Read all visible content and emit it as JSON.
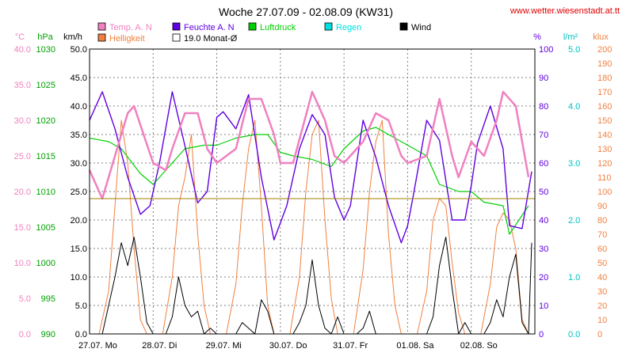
{
  "chart_data": {
    "type": "line",
    "title": "Woche 27.07.09 - 02.08.09 (KW31)",
    "source": "www.wetter.wiesenstadt.at.tt",
    "legend": [
      {
        "key": "temp",
        "label": "Temp. A. N",
        "color": "#f080c0"
      },
      {
        "key": "feuchte",
        "label": "Feuchte A. N",
        "color": "#6000e0"
      },
      {
        "key": "luftdruck",
        "label": "Luftdruck",
        "color": "#00d000"
      },
      {
        "key": "regen",
        "label": "Regen",
        "color": "#00e0e0"
      },
      {
        "key": "wind",
        "label": "Wind",
        "color": "#000000"
      },
      {
        "key": "helligkeit",
        "label": "Helligkeit",
        "color": "#f08040"
      },
      {
        "key": "mean",
        "label": "19.0 Monat-Ø",
        "color": "#a08000"
      }
    ],
    "axes": {
      "temp": {
        "unit": "°C",
        "ticks": [
          "0.0",
          "5.0",
          "10.0",
          "15.0",
          "20.0",
          "25.0",
          "30.0",
          "35.0",
          "40.0"
        ],
        "color": "#f080c0"
      },
      "pressure": {
        "unit": "hPa",
        "ticks": [
          "990",
          "995",
          "1000",
          "1005",
          "1010",
          "1015",
          "1020",
          "1025",
          "1030"
        ],
        "color": "#00a000"
      },
      "wind": {
        "unit": "km/h",
        "ticks": [
          "0.0",
          "5.0",
          "10.0",
          "15.0",
          "20.0",
          "25.0",
          "30.0",
          "35.0",
          "40.0",
          "45.0",
          "50.0"
        ],
        "color": "#000000"
      },
      "humidity": {
        "unit": "%",
        "ticks": [
          "0",
          "10",
          "20",
          "30",
          "40",
          "50",
          "60",
          "70",
          "80",
          "90",
          "100"
        ],
        "color": "#6000e0"
      },
      "rain": {
        "unit": "l/m²",
        "ticks": [
          "0.0",
          "1.0",
          "2.0",
          "3.0",
          "4.0",
          "5.0"
        ],
        "color": "#00c0c0"
      },
      "light": {
        "unit": "klux",
        "ticks": [
          "0",
          "10",
          "20",
          "30",
          "40",
          "50",
          "60",
          "70",
          "80",
          "90",
          "100",
          "110",
          "120",
          "130",
          "140",
          "150",
          "160",
          "170",
          "180",
          "190",
          "200"
        ],
        "color": "#f08040"
      }
    },
    "x_labels": [
      "27.07.  Mo",
      "28.07.  Di",
      "29.07.  Mi",
      "30.07.  Do",
      "31.07.  Fr",
      "01.08.  Sa",
      "02.08.  So"
    ],
    "days": 7,
    "mean_temp": 19.0,
    "series": {
      "temp": {
        "x_days": [
          0,
          0.2,
          0.4,
          0.6,
          0.7,
          0.85,
          1.0,
          1.2,
          1.3,
          1.5,
          1.7,
          1.85,
          2.0,
          2.3,
          2.5,
          2.7,
          2.9,
          3.0,
          3.2,
          3.35,
          3.5,
          3.7,
          3.85,
          4.0,
          4.3,
          4.5,
          4.7,
          4.9,
          5.0,
          5.3,
          5.5,
          5.7,
          5.8,
          6.0,
          6.2,
          6.4,
          6.5,
          6.7,
          6.9
        ],
        "values": [
          23,
          19,
          25,
          31,
          32,
          28,
          24,
          23,
          26,
          31,
          31,
          26,
          24,
          26,
          33,
          33,
          28,
          24,
          24,
          29,
          34,
          30,
          25,
          24,
          27,
          31,
          30,
          25,
          24,
          25,
          33,
          25,
          22,
          27,
          25,
          30,
          34,
          32,
          22
        ]
      },
      "feuchte": {
        "x_days": [
          0,
          0.2,
          0.4,
          0.6,
          0.8,
          0.95,
          1.1,
          1.3,
          1.5,
          1.7,
          1.85,
          2.0,
          2.1,
          2.3,
          2.5,
          2.7,
          2.9,
          3.1,
          3.3,
          3.5,
          3.7,
          3.85,
          4.0,
          4.1,
          4.3,
          4.5,
          4.7,
          4.9,
          5.0,
          5.1,
          5.3,
          5.5,
          5.7,
          5.9,
          6.0,
          6.1,
          6.3,
          6.5,
          6.6,
          6.8,
          6.95
        ],
        "values": [
          75,
          85,
          72,
          55,
          42,
          45,
          60,
          85,
          66,
          46,
          50,
          76,
          78,
          72,
          84,
          55,
          33,
          45,
          65,
          77,
          70,
          48,
          40,
          45,
          75,
          62,
          45,
          32,
          38,
          50,
          75,
          68,
          40,
          40,
          52,
          67,
          80,
          65,
          38,
          37,
          57
        ]
      },
      "luftdruck": {
        "x_days": [
          0,
          0.3,
          0.5,
          0.8,
          1.0,
          1.2,
          1.5,
          1.8,
          2.0,
          2.3,
          2.6,
          2.8,
          3.0,
          3.2,
          3.5,
          3.8,
          4.0,
          4.3,
          4.5,
          4.7,
          4.9,
          5.0,
          5.3,
          5.5,
          5.8,
          6.0,
          6.2,
          6.5,
          6.6,
          6.9
        ],
        "values": [
          1017.5,
          1017,
          1016,
          1012.5,
          1011,
          1013,
          1016,
          1016.5,
          1016.5,
          1017.5,
          1018,
          1018,
          1015.5,
          1015,
          1014.5,
          1013.5,
          1016,
          1018.5,
          1019,
          1018,
          1017,
          1016.5,
          1015,
          1011,
          1010,
          1010,
          1008.5,
          1008,
          1004,
          1008
        ]
      },
      "helligkeit": {
        "x_days": [
          0,
          0.15,
          0.3,
          0.4,
          0.5,
          0.6,
          0.7,
          0.8,
          0.9,
          1.0,
          1.15,
          1.3,
          1.4,
          1.5,
          1.6,
          1.7,
          1.8,
          1.9,
          2.0,
          2.15,
          2.3,
          2.4,
          2.5,
          2.6,
          2.7,
          2.8,
          2.9,
          3.0,
          3.15,
          3.3,
          3.4,
          3.5,
          3.6,
          3.7,
          3.8,
          3.9,
          4.0,
          4.15,
          4.3,
          4.4,
          4.5,
          4.6,
          4.7,
          4.8,
          4.9,
          5.0,
          5.15,
          5.3,
          5.4,
          5.5,
          5.6,
          5.7,
          5.8,
          5.9,
          6.0,
          6.15,
          6.3,
          6.4,
          6.5,
          6.6,
          6.7,
          6.8,
          6.9
        ],
        "values": [
          0,
          0,
          30,
          90,
          150,
          120,
          60,
          10,
          0,
          0,
          0,
          40,
          90,
          110,
          140,
          70,
          20,
          0,
          0,
          0,
          35,
          90,
          130,
          150,
          90,
          20,
          0,
          0,
          0,
          40,
          100,
          140,
          150,
          80,
          25,
          0,
          0,
          0,
          45,
          100,
          135,
          150,
          70,
          20,
          0,
          0,
          0,
          30,
          80,
          95,
          90,
          50,
          15,
          0,
          0,
          0,
          35,
          75,
          85,
          80,
          60,
          10,
          0
        ]
      },
      "wind": {
        "x_days": [
          0,
          0.2,
          0.3,
          0.4,
          0.5,
          0.6,
          0.7,
          0.8,
          0.9,
          1.0,
          1.1,
          1.2,
          1.3,
          1.4,
          1.5,
          1.6,
          1.7,
          1.8,
          1.9,
          2.0,
          2.1,
          2.2,
          2.3,
          2.4,
          2.5,
          2.6,
          2.7,
          2.8,
          2.9,
          3.0,
          3.1,
          3.2,
          3.3,
          3.4,
          3.5,
          3.6,
          3.7,
          3.8,
          3.9,
          4.0,
          4.1,
          4.2,
          4.3,
          4.4,
          4.5,
          4.6,
          4.7,
          4.8,
          4.9,
          5.0,
          5.1,
          5.2,
          5.3,
          5.4,
          5.5,
          5.6,
          5.7,
          5.8,
          5.9,
          6.0,
          6.1,
          6.2,
          6.3,
          6.4,
          6.5,
          6.6,
          6.7,
          6.8,
          6.9,
          6.95
        ],
        "values": [
          0,
          0,
          5,
          10,
          16,
          12,
          17,
          10,
          2,
          0,
          0,
          0,
          3,
          10,
          5,
          3,
          4,
          0,
          1,
          0,
          0,
          0,
          0,
          2,
          1,
          0,
          6,
          4,
          0,
          0,
          0,
          0,
          2,
          5,
          13,
          5,
          1,
          0,
          3,
          0,
          0,
          0,
          1,
          4,
          0,
          0,
          0,
          0,
          0,
          0,
          0,
          0,
          0,
          3,
          12,
          17,
          8,
          0,
          2,
          0,
          0,
          0,
          2,
          6,
          3,
          10,
          14,
          2,
          0,
          16
        ]
      }
    }
  }
}
